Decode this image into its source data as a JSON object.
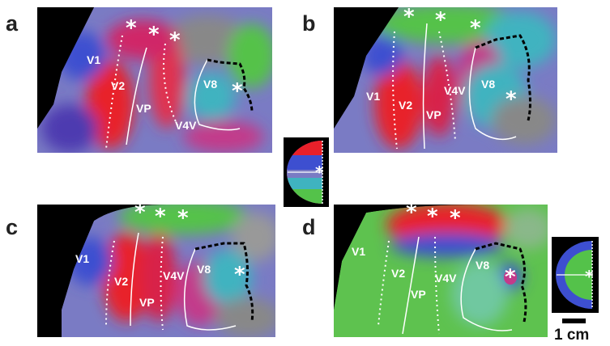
{
  "panels": [
    {
      "letter": "a",
      "labels": {
        "v1": "V1",
        "v2": "V2",
        "vp": "VP",
        "v4v": "V4V",
        "v8": "V8"
      }
    },
    {
      "letter": "b",
      "labels": {
        "v1": "V1",
        "v2": "V2",
        "vp": "VP",
        "v4v": "V4V",
        "v8": "V8"
      }
    },
    {
      "letter": "c",
      "labels": {
        "v1": "V1",
        "v2": "V2",
        "vp": "VP",
        "v4v": "V4V",
        "v8": "V8"
      }
    },
    {
      "letter": "d",
      "labels": {
        "v1": "V1",
        "v2": "V2",
        "vp": "VP",
        "v4v": "V4V",
        "v8": "V8"
      }
    }
  ],
  "star_glyph": "*",
  "scale": {
    "label": "1 cm"
  },
  "colors": {
    "red": "#e8202a",
    "magenta": "#c33a8a",
    "blue": "#3d4fd0",
    "green": "#54c24a",
    "cyan": "#3fb3c0",
    "black": "#000000"
  }
}
